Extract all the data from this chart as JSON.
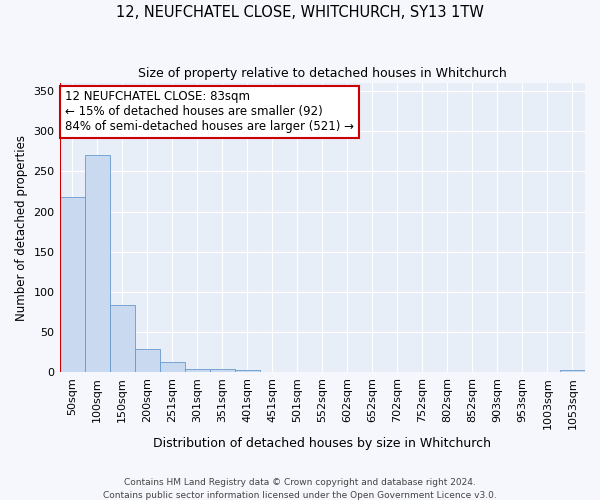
{
  "title1": "12, NEUFCHATEL CLOSE, WHITCHURCH, SY13 1TW",
  "title2": "Size of property relative to detached houses in Whitchurch",
  "xlabel": "Distribution of detached houses by size in Whitchurch",
  "ylabel": "Number of detached properties",
  "bar_color": "#c9d9ef",
  "bar_edge_color": "#6699cc",
  "annotation_line_color": "#cc0000",
  "categories": [
    "50sqm",
    "100sqm",
    "150sqm",
    "200sqm",
    "251sqm",
    "301sqm",
    "351sqm",
    "401sqm",
    "451sqm",
    "501sqm",
    "552sqm",
    "602sqm",
    "652sqm",
    "702sqm",
    "752sqm",
    "802sqm",
    "852sqm",
    "903sqm",
    "953sqm",
    "1003sqm",
    "1053sqm"
  ],
  "values": [
    218,
    271,
    83,
    29,
    13,
    4,
    4,
    3,
    0,
    0,
    0,
    0,
    0,
    0,
    0,
    0,
    0,
    0,
    0,
    0,
    3
  ],
  "property_label": "12 NEUFCHATEL CLOSE: 83sqm",
  "annotation_line1": "← 15% of detached houses are smaller (92)",
  "annotation_line2": "84% of semi-detached houses are larger (521) →",
  "annotation_box_color": "#ffffff",
  "annotation_box_edge": "#cc0000",
  "vline_x": -0.5,
  "ylim": [
    0,
    360
  ],
  "yticks": [
    0,
    50,
    100,
    150,
    200,
    250,
    300,
    350
  ],
  "footer1": "Contains HM Land Registry data © Crown copyright and database right 2024.",
  "footer2": "Contains public sector information licensed under the Open Government Licence v3.0.",
  "bg_color": "#f5f7fc",
  "plot_bg": "#e8eef8"
}
